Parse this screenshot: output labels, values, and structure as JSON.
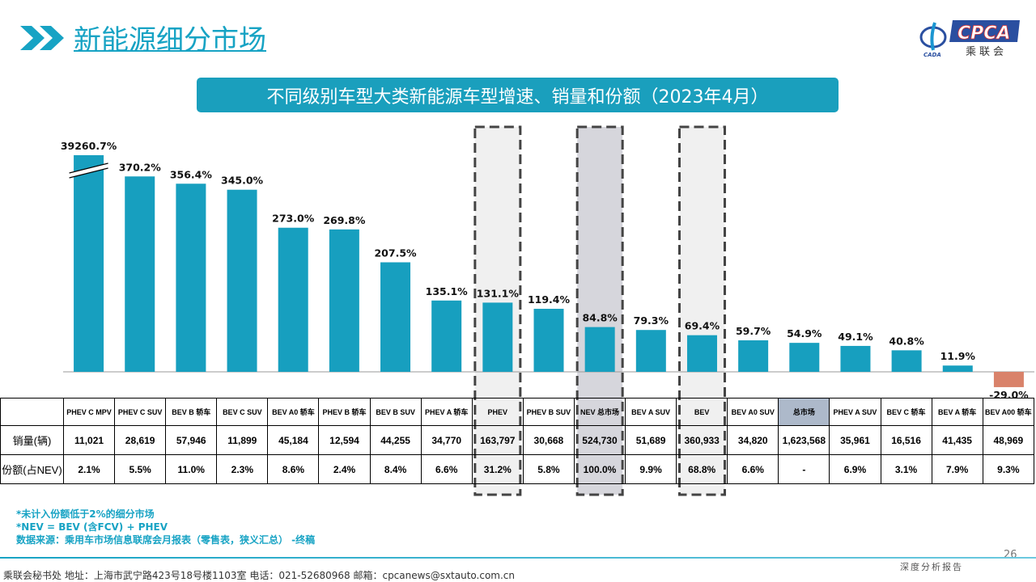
{
  "header": {
    "title": "新能源细分市场",
    "icon": "double-chevron-right-icon",
    "logo_text": "CPCA",
    "logo_sub": "乘联会",
    "logo_small": "CADA"
  },
  "colors": {
    "accent": "#17a3c4",
    "bar": "#179fbf",
    "negative": "#d9826a",
    "total_cell": "#adb9ca"
  },
  "chart_data": {
    "type": "bar",
    "title": "不同级别车型大类新能源车型增速、销量和份额（2023年4月）",
    "categories": [
      "PHEV C MPV",
      "PHEV C SUV",
      "BEV B 轿车",
      "BEV C SUV",
      "BEV A0 轿车",
      "PHEV B 轿车",
      "BEV B SUV",
      "PHEV A 轿车",
      "PHEV",
      "PHEV B SUV",
      "NEV 总市场",
      "BEV A SUV",
      "BEV",
      "BEV A0 SUV",
      "总市场",
      "PHEV A SUV",
      "BEV C 轿车",
      "BEV A 轿车",
      "BEV A00 轿车"
    ],
    "values": [
      39260.7,
      370.2,
      356.4,
      345.0,
      273.0,
      269.8,
      207.5,
      135.1,
      131.1,
      119.4,
      84.8,
      79.3,
      69.4,
      59.7,
      54.9,
      49.1,
      40.8,
      11.9,
      -29.0
    ],
    "labels": [
      "39260.7%",
      "370.2%",
      "356.4%",
      "345.0%",
      "273.0%",
      "269.8%",
      "207.5%",
      "135.1%",
      "131.1%",
      "119.4%",
      "84.8%",
      "79.3%",
      "69.4%",
      "59.7%",
      "54.9%",
      "49.1%",
      "40.8%",
      "11.9%",
      "-29.0%"
    ],
    "broken_axis_bar": "PHEV C MPV",
    "highlighted": [
      "PHEV",
      "NEV 总市场",
      "BEV"
    ],
    "grid": false
  },
  "table": {
    "row_labels": {
      "sales": "销量(辆)",
      "share": "份额(占NEV)"
    },
    "sales": [
      "11,021",
      "28,619",
      "57,946",
      "11,899",
      "45,184",
      "12,594",
      "44,255",
      "34,770",
      "163,797",
      "30,668",
      "524,730",
      "51,689",
      "360,933",
      "34,820",
      "1,623,568",
      "35,961",
      "16,516",
      "41,435",
      "48,969"
    ],
    "share": [
      "2.1%",
      "5.5%",
      "11.0%",
      "2.3%",
      "8.6%",
      "2.4%",
      "8.4%",
      "6.6%",
      "31.2%",
      "5.8%",
      "100.0%",
      "9.9%",
      "68.8%",
      "6.6%",
      "-",
      "6.9%",
      "3.1%",
      "7.9%",
      "9.3%"
    ]
  },
  "notes": [
    "*未计入份额低于2%的细分市场",
    "*NEV = BEV (含FCV) + PHEV",
    "数据来源：乘用车市场信息联席会月报表（零售表，狭义汇总） -终稿"
  ],
  "footer": {
    "text": "乘联会秘书处   地址：上海市武宁路423号18号楼1103室  电话：021-52680968   邮箱：cpcanews@sxtauto.com.cn",
    "tag": "深度分析报告",
    "page": "26"
  }
}
